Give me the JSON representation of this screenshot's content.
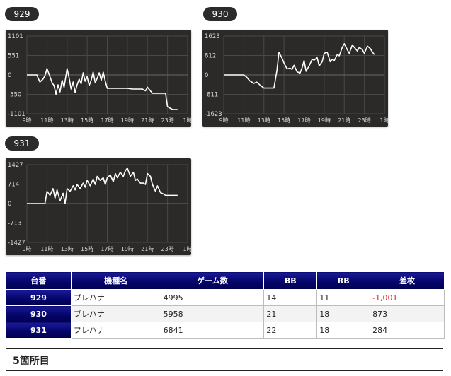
{
  "chart_data": [
    {
      "type": "line",
      "id": "929",
      "ylim": [
        -1101,
        1101
      ],
      "ytick_labels": [
        "1101",
        "551",
        "0",
        "-550",
        "-1101"
      ],
      "ytick_values": [
        1101,
        551,
        0,
        -550,
        -1101
      ],
      "xtick_labels": [
        "9時",
        "11時",
        "13時",
        "15時",
        "17時",
        "19時",
        "21時",
        "23時",
        "1時"
      ],
      "x_hours": [
        9,
        11,
        13,
        15,
        17,
        19,
        21,
        23,
        25
      ],
      "series": [
        {
          "x": [
            9.0,
            10.0,
            10.1,
            10.3,
            10.6,
            10.8,
            11.0,
            11.3,
            11.5,
            11.7,
            11.9,
            12.1,
            12.3,
            12.5,
            12.7,
            13.0,
            13.2,
            13.4,
            13.6,
            13.8,
            14.0,
            14.2,
            14.4,
            14.6,
            14.8,
            15.0,
            15.2,
            15.4,
            15.6,
            15.8,
            16.0,
            16.2,
            16.4,
            16.6,
            16.8,
            17.0,
            17.5,
            18.0,
            19.0,
            19.5,
            20.0,
            20.5,
            20.8,
            21.0,
            21.5,
            22.0,
            22.5,
            22.8,
            23.0,
            23.5,
            24.0
          ],
          "y": [
            0,
            0,
            -80,
            -200,
            -120,
            -20,
            180,
            -50,
            -220,
            -300,
            -550,
            -280,
            -480,
            -150,
            -350,
            180,
            -80,
            -400,
            -200,
            -500,
            -280,
            -120,
            -250,
            60,
            -180,
            -50,
            -300,
            -150,
            80,
            -220,
            -90,
            60,
            -150,
            80,
            -180,
            -380,
            -380,
            -380,
            -380,
            -400,
            -400,
            -400,
            -450,
            -350,
            -520,
            -520,
            -520,
            -520,
            -900,
            -980,
            -980
          ]
        }
      ]
    },
    {
      "type": "line",
      "id": "930",
      "ylim": [
        -1623,
        1623
      ],
      "ytick_labels": [
        "1623",
        "812",
        "0",
        "-811",
        "-1623"
      ],
      "ytick_values": [
        1623,
        812,
        0,
        -811,
        -1623
      ],
      "xtick_labels": [
        "9時",
        "11時",
        "13時",
        "15時",
        "17時",
        "19時",
        "21時",
        "23時",
        "1時"
      ],
      "x_hours": [
        9,
        11,
        13,
        15,
        17,
        19,
        21,
        23,
        25
      ],
      "series": [
        {
          "x": [
            9.0,
            10.0,
            10.5,
            11.0,
            11.3,
            11.6,
            12.0,
            12.3,
            12.6,
            13.0,
            13.5,
            14.0,
            14.3,
            14.5,
            14.8,
            15.0,
            15.3,
            15.6,
            15.8,
            16.0,
            16.3,
            16.6,
            16.8,
            17.0,
            17.2,
            17.5,
            17.8,
            18.0,
            18.3,
            18.5,
            18.8,
            19.0,
            19.3,
            19.6,
            19.8,
            20.0,
            20.3,
            20.5,
            20.8,
            21.0,
            21.3,
            21.5,
            21.8,
            22.0,
            22.3,
            22.5,
            22.8,
            23.0,
            23.3,
            23.6,
            23.8,
            24.0
          ],
          "y": [
            0,
            0,
            0,
            0,
            -100,
            -250,
            -350,
            -300,
            -420,
            -550,
            -550,
            -550,
            200,
            950,
            700,
            500,
            250,
            280,
            230,
            400,
            130,
            80,
            300,
            600,
            150,
            380,
            650,
            620,
            720,
            380,
            550,
            900,
            950,
            550,
            650,
            600,
            850,
            800,
            1150,
            1300,
            1050,
            900,
            1250,
            1150,
            1000,
            1150,
            1050,
            900,
            1200,
            1100,
            950,
            850
          ]
        }
      ]
    },
    {
      "type": "line",
      "id": "931",
      "ylim": [
        -1427,
        1427
      ],
      "ytick_labels": [
        "1427",
        "714",
        "0",
        "-713",
        "-1427"
      ],
      "ytick_values": [
        1427,
        714,
        0,
        -713,
        -1427
      ],
      "xtick_labels": [
        "9時",
        "11時",
        "13時",
        "15時",
        "17時",
        "19時",
        "21時",
        "23時",
        "1時"
      ],
      "x_hours": [
        9,
        11,
        13,
        15,
        17,
        19,
        21,
        23,
        25
      ],
      "series": [
        {
          "x": [
            9.0,
            10.0,
            10.2,
            10.5,
            10.8,
            11.0,
            11.3,
            11.6,
            11.8,
            12.0,
            12.3,
            12.6,
            12.8,
            13.0,
            13.3,
            13.6,
            13.8,
            14.0,
            14.3,
            14.6,
            14.8,
            15.0,
            15.3,
            15.6,
            15.8,
            16.0,
            16.3,
            16.6,
            16.8,
            17.0,
            17.3,
            17.6,
            17.8,
            18.0,
            18.3,
            18.6,
            18.8,
            19.0,
            19.3,
            19.6,
            19.8,
            20.0,
            20.3,
            20.6,
            20.8,
            21.0,
            21.3,
            21.5,
            21.8,
            22.0,
            22.3,
            22.6,
            22.8,
            23.0,
            23.5,
            24.0
          ],
          "y": [
            0,
            0,
            0,
            0,
            0,
            450,
            300,
            550,
            200,
            500,
            100,
            380,
            0,
            550,
            450,
            650,
            500,
            700,
            550,
            750,
            600,
            850,
            650,
            900,
            700,
            1000,
            850,
            950,
            700,
            950,
            1050,
            800,
            1100,
            950,
            1150,
            1000,
            1200,
            1300,
            1000,
            1150,
            850,
            900,
            750,
            750,
            700,
            1100,
            1000,
            700,
            450,
            650,
            400,
            350,
            300,
            300,
            300,
            300
          ]
        }
      ]
    }
  ],
  "table": {
    "headers": [
      "台番",
      "機種名",
      "ゲーム数",
      "BB",
      "RB",
      "差枚"
    ],
    "rows": [
      {
        "no": "929",
        "model": "プレハナ",
        "games": "4995",
        "bb": "14",
        "rb": "11",
        "diff": "-1,001"
      },
      {
        "no": "930",
        "model": "プレハナ",
        "games": "5958",
        "bb": "21",
        "rb": "18",
        "diff": "873"
      },
      {
        "no": "931",
        "model": "プレハナ",
        "games": "6841",
        "bb": "22",
        "rb": "18",
        "diff": "284"
      }
    ]
  },
  "footer": {
    "title": "5箇所目"
  },
  "colors": {
    "panel_bg": "#2c2a28",
    "line": "#ffffff",
    "header_blue": "#05056a",
    "negative": "#e0201b"
  }
}
